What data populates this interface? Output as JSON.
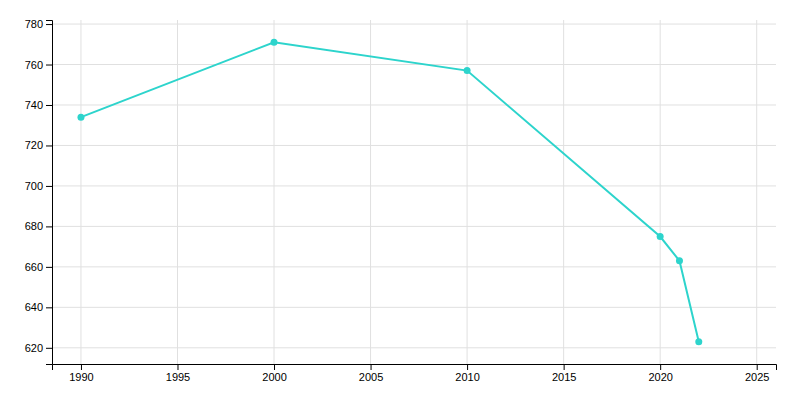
{
  "chart_data": {
    "type": "line",
    "x": [
      1990,
      2000,
      2010,
      2020,
      2021,
      2022
    ],
    "values": [
      734,
      771,
      757,
      675,
      663,
      623
    ],
    "color": "#2dd4cc",
    "marker": "circle",
    "xlim": [
      1988.5,
      2026
    ],
    "ylim": [
      612,
      782
    ],
    "xticks": [
      1990,
      1995,
      2000,
      2005,
      2010,
      2015,
      2020,
      2025
    ],
    "yticks": [
      620,
      640,
      660,
      680,
      700,
      720,
      740,
      760,
      780
    ],
    "grid": true
  }
}
